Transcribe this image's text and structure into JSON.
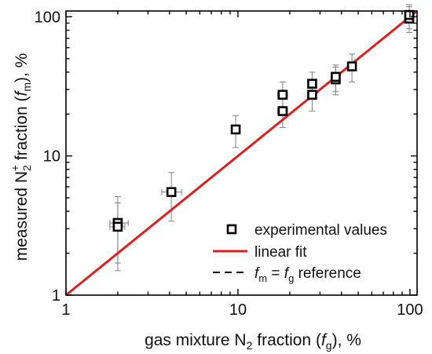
{
  "chart_data": {
    "type": "scatter",
    "x_scale": "log",
    "y_scale": "log",
    "xlim": [
      1,
      110
    ],
    "ylim": [
      1,
      110
    ],
    "grid": false,
    "legend_position": "bottom-right",
    "x_ticks": [
      {
        "value": 1,
        "label": "1"
      },
      {
        "value": 10,
        "label": "10"
      },
      {
        "value": 100,
        "label": "100"
      }
    ],
    "y_ticks": [
      {
        "value": 1,
        "label": "1"
      },
      {
        "value": 10,
        "label": "10"
      },
      {
        "value": 100,
        "label": "100"
      }
    ],
    "xlabel": {
      "main": "gas mixture N",
      "sub_2": "2",
      "mid": " fraction (",
      "italic": "f",
      "sub_g": "g",
      "end": "), %"
    },
    "ylabel": {
      "main": "measured N",
      "sub_2": "2",
      "sup": "+",
      "mid": " fraction (",
      "italic": "f",
      "sub_m": "m",
      "end": "), %"
    },
    "series": [
      {
        "name": "experimental values",
        "kind": "markers",
        "marker": "open-square",
        "color": "#000000",
        "points": [
          {
            "x": 2.0,
            "y": 3.3,
            "x_err": [
              1.8,
              2.3
            ],
            "y_err": [
              1.7,
              5.1
            ]
          },
          {
            "x": 2.0,
            "y": 3.1,
            "x_err": [
              1.8,
              2.2
            ],
            "y_err": [
              1.5,
              4.6
            ]
          },
          {
            "x": 4.1,
            "y": 5.5,
            "x_err": [
              3.6,
              4.7
            ],
            "y_err": [
              3.4,
              7.6
            ]
          },
          {
            "x": 9.7,
            "y": 15.5,
            "x_err": [
              9.3,
              10.1
            ],
            "y_err": [
              11.5,
              19.5
            ]
          },
          {
            "x": 18.2,
            "y": 27.5,
            "x_err": [
              17.0,
              19.4
            ],
            "y_err": [
              21.0,
              34.0
            ]
          },
          {
            "x": 18.2,
            "y": 21.0,
            "x_err": [
              17.0,
              19.4
            ],
            "y_err": [
              16.0,
              26.0
            ]
          },
          {
            "x": 27.0,
            "y": 33.0,
            "x_err": [
              25.5,
              28.5
            ],
            "y_err": [
              26.0,
              40.0
            ]
          },
          {
            "x": 27.0,
            "y": 27.5,
            "x_err": [
              25.5,
              28.5
            ],
            "y_err": [
              21.0,
              34.0
            ]
          },
          {
            "x": 37.0,
            "y": 35.5,
            "x_err": [
              35.0,
              39.0
            ],
            "y_err": [
              27.5,
              43.5
            ]
          },
          {
            "x": 37.0,
            "y": 37.0,
            "x_err": [
              35.0,
              39.0
            ],
            "y_err": [
              29.0,
              45.0
            ]
          },
          {
            "x": 46.0,
            "y": 44.0,
            "x_err": [
              44.0,
              48.0
            ],
            "y_err": [
              34.0,
              54.0
            ]
          },
          {
            "x": 99.0,
            "y": 97.0,
            "x_err": [
              94.0,
              104.0
            ],
            "y_err": [
              77.0,
              118.0
            ]
          },
          {
            "x": 99.0,
            "y": 103.0,
            "x_err": [
              94.0,
              104.0
            ],
            "y_err": [
              82.0,
              122.0
            ]
          }
        ]
      },
      {
        "name": "linear  fit",
        "kind": "line",
        "color": "#e02020",
        "points": [
          {
            "x": 1,
            "y": 1.0
          },
          {
            "x": 110,
            "y": 112
          }
        ]
      },
      {
        "name_parts": {
          "f1": "f",
          "s1": "m",
          "eq": " = ",
          "f2": "f",
          "s2": "g",
          "tail": " reference"
        },
        "kind": "dashed-line",
        "color": "#000000",
        "points": [
          {
            "x": 1,
            "y": 1
          },
          {
            "x": 110,
            "y": 110
          }
        ]
      }
    ]
  }
}
